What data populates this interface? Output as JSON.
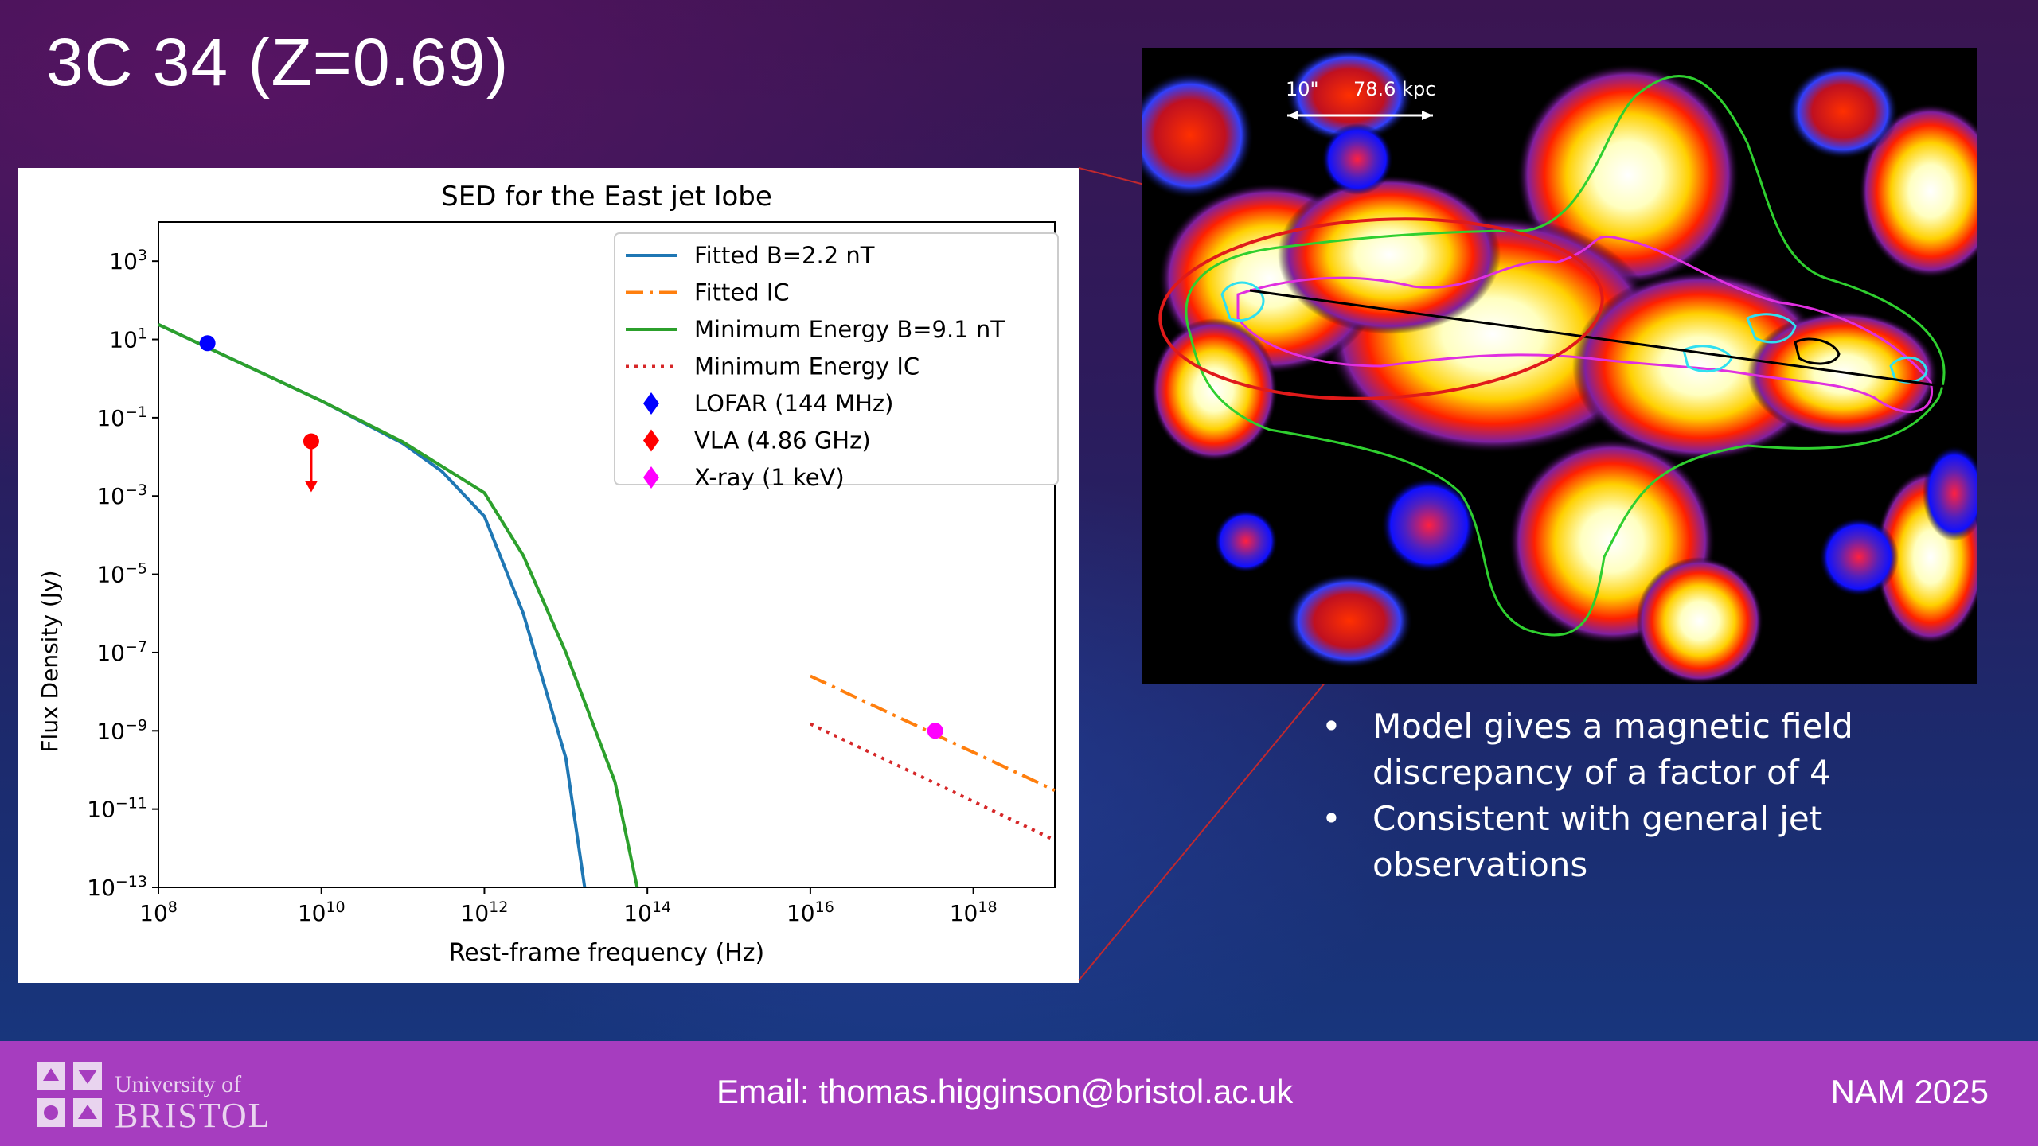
{
  "slide": {
    "title": "3C 34 (Z=0.69)",
    "bullets": [
      "Model gives a magnetic field discrepancy of a factor of  4",
      "Consistent with general jet observations"
    ],
    "bullet_glyph": "•"
  },
  "image": {
    "scale_angular": "10\"",
    "scale_physical": "78.6 kpc"
  },
  "footer": {
    "university_line1": "University of",
    "university_line2": "BRISTOL",
    "email": "Email: thomas.higginson@bristol.ac.uk",
    "conference": "NAM 2025",
    "color": "#a63dbf"
  },
  "chart_data": {
    "type": "line",
    "title": "SED for the East jet lobe",
    "xlabel": "Rest-frame frequency (Hz)",
    "ylabel": "Flux Density (Jy)",
    "xscale": "log",
    "yscale": "log",
    "xlim": [
      100000000.0,
      1e+19
    ],
    "ylim": [
      1e-13,
      10000.0
    ],
    "xticks": [
      8,
      10,
      12,
      14,
      16,
      18
    ],
    "yticks": [
      3,
      1,
      -1,
      -3,
      -5,
      -7,
      -9,
      -11,
      -13
    ],
    "legend_position": "top-right",
    "series": [
      {
        "name": "Fitted B=2.2 nT",
        "color": "#1f77b4",
        "style": "solid",
        "points": [
          [
            100000000.0,
            24
          ],
          [
            10000000000.0,
            0.27
          ],
          [
            100000000000.0,
            0.022
          ],
          [
            300000000000.0,
            0.0043
          ],
          [
            1000000000000.0,
            0.0003
          ],
          [
            3000000000000.0,
            1e-06
          ],
          [
            10000000000000.0,
            2e-10
          ],
          [
            17000000000000.0,
            1e-13
          ]
        ]
      },
      {
        "name": "Fitted IC",
        "color": "#ff7f0e",
        "style": "dashdot",
        "points": [
          [
            1e+16,
            2.5e-08
          ],
          [
            1e+19,
            3e-11
          ]
        ]
      },
      {
        "name": "Minimum Energy B=9.1 nT",
        "color": "#2ca02c",
        "style": "solid",
        "points": [
          [
            100000000.0,
            24
          ],
          [
            10000000000.0,
            0.27
          ],
          [
            100000000000.0,
            0.024
          ],
          [
            1000000000000.0,
            0.0012
          ],
          [
            3000000000000.0,
            3e-05
          ],
          [
            10000000000000.0,
            1e-07
          ],
          [
            40000000000000.0,
            5e-11
          ],
          [
            75000000000000.0,
            1e-13
          ]
        ]
      },
      {
        "name": "Minimum Energy IC",
        "color": "#d62728",
        "style": "dotted",
        "points": [
          [
            1e+16,
            1.5e-09
          ],
          [
            1e+19,
            1.6e-12
          ]
        ]
      }
    ],
    "points": [
      {
        "name": "LOFAR (144 MHz)",
        "x": 400000000.0,
        "y": 8,
        "color": "#0000ff"
      },
      {
        "name": "VLA (4.86 GHz)",
        "x": 7500000000.0,
        "y": 0.025,
        "color": "#ff0000",
        "upper_limit": true
      },
      {
        "name": "X-ray (1 keV)",
        "x": 3.4e+17,
        "y": 1e-09,
        "color": "#ff00ff"
      }
    ]
  }
}
